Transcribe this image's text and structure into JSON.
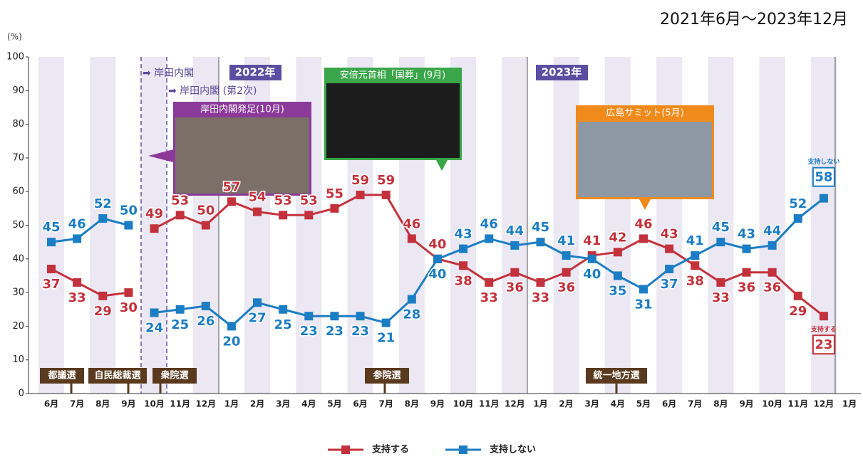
{
  "chart_data": {
    "type": "line",
    "subtitle": "2021年6月～2023年12月",
    "y_label": "(%)",
    "categories": [
      "6月",
      "7月",
      "8月",
      "9月",
      "10月",
      "11月",
      "12月",
      "1月",
      "2月",
      "3月",
      "4月",
      "5月",
      "6月",
      "7月",
      "8月",
      "9月",
      "10月",
      "11月",
      "12月",
      "1月",
      "2月",
      "3月",
      "4月",
      "5月",
      "6月",
      "7月",
      "8月",
      "9月",
      "10月",
      "11月",
      "12月",
      "1月"
    ],
    "series": [
      {
        "name": "支持する",
        "color": "#c3323c",
        "values": [
          37,
          33,
          29,
          30,
          49,
          53,
          50,
          57,
          54,
          53,
          53,
          55,
          59,
          59,
          46,
          40,
          38,
          33,
          36,
          33,
          36,
          41,
          42,
          46,
          43,
          38,
          33,
          36,
          36,
          29,
          23,
          null
        ],
        "end_label": "支持する"
      },
      {
        "name": "支持しない",
        "color": "#1b7dc3",
        "values": [
          45,
          46,
          52,
          50,
          24,
          25,
          26,
          20,
          27,
          25,
          23,
          23,
          23,
          21,
          28,
          40,
          43,
          46,
          44,
          45,
          41,
          40,
          35,
          31,
          37,
          41,
          45,
          43,
          44,
          52,
          58,
          null
        ],
        "end_label": "支持しない"
      }
    ],
    "break_after": 3,
    "ylim": [
      0,
      100
    ],
    "yticks": [
      0,
      10,
      20,
      30,
      40,
      50,
      60,
      70,
      80,
      90,
      100
    ],
    "annotations": {
      "cabinet1": "➡ 岸田内閣",
      "cabinet2": "➡ 岸田内閣 (第2次)",
      "year2022": "2022年",
      "year2023": "2023年",
      "photo1": "岸田内閣発足(10月)",
      "photo2": "安倍元首相「国葬」(9月)",
      "photo3": "広島サミット(5月)",
      "event1": "都議選",
      "event2": "自民総裁選",
      "event3": "衆院選",
      "event4": "参院選",
      "event5": "統一地方選"
    }
  }
}
